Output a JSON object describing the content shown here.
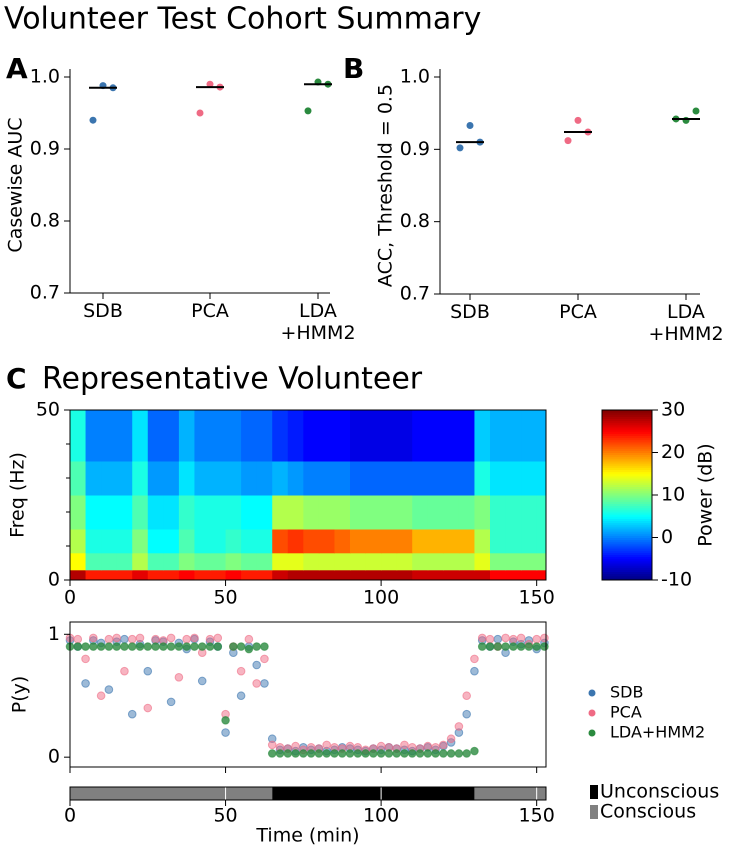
{
  "title": "Volunteer Test Cohort Summary",
  "chart_data": [
    {
      "type": "strip",
      "panel": "A",
      "ylabel": "Casewise AUC",
      "categories": [
        [
          "SDB"
        ],
        [
          "PCA"
        ],
        [
          "LDA",
          "+HMM2"
        ]
      ],
      "colors": [
        "#3b75af",
        "#ef6a84",
        "#2a8a3e"
      ],
      "values": [
        [
          0.94,
          0.988,
          0.985
        ],
        [
          0.95,
          0.99,
          0.986
        ],
        [
          0.953,
          0.993,
          0.99
        ]
      ],
      "medians": [
        0.985,
        0.986,
        0.99
      ],
      "ylim": [
        0.7,
        1.0
      ],
      "yticks": [
        0.7,
        0.8,
        0.9,
        {
          "value": 1.0,
          "label": "1.0"
        }
      ]
    },
    {
      "type": "strip",
      "panel": "B",
      "ylabel": "ACC, Threshold = 0.5",
      "categories": [
        [
          "SDB"
        ],
        [
          "PCA"
        ],
        [
          "LDA",
          "+HMM2"
        ]
      ],
      "colors": [
        "#3b75af",
        "#ef6a84",
        "#2a8a3e"
      ],
      "values": [
        [
          0.902,
          0.933,
          0.91
        ],
        [
          0.912,
          0.94,
          0.924
        ],
        [
          0.942,
          0.94,
          0.953
        ]
      ],
      "medians": [
        0.91,
        0.924,
        0.942
      ],
      "ylim": [
        0.7,
        1.0
      ],
      "yticks": [
        0.7,
        0.8,
        0.9,
        {
          "value": 1.0,
          "label": "1.0"
        }
      ]
    },
    {
      "type": "heatmap",
      "panel": "C",
      "title": "Representative Volunteer",
      "ylabel": "Freq (Hz)",
      "x_edges": [
        0,
        5,
        10,
        15,
        20,
        25,
        30,
        35,
        40,
        45,
        50,
        55,
        60,
        65,
        70,
        75,
        80,
        85,
        90,
        95,
        100,
        105,
        110,
        115,
        120,
        125,
        130,
        135,
        140,
        145,
        150,
        153
      ],
      "y_edges": [
        0,
        3,
        8,
        15,
        25,
        35,
        50
      ],
      "z": [
        [
          28,
          24,
          24,
          24,
          26,
          24,
          24,
          25,
          24,
          24,
          25,
          24,
          24,
          27,
          28,
          28,
          28,
          28,
          28,
          28,
          28,
          28,
          27,
          27,
          27,
          27,
          27,
          25,
          25,
          25,
          25
        ],
        [
          15,
          8,
          8,
          8,
          12,
          8,
          8,
          10,
          9,
          9,
          10,
          9,
          9,
          14,
          14,
          13,
          13,
          13,
          13,
          13,
          13,
          13,
          12,
          12,
          12,
          12,
          14,
          10,
          10,
          10,
          10
        ],
        [
          12,
          6,
          6,
          6,
          10,
          5,
          5,
          8,
          6,
          6,
          7,
          6,
          6,
          22,
          23,
          22,
          22,
          21,
          20,
          20,
          20,
          20,
          18,
          18,
          18,
          18,
          12,
          7,
          7,
          7,
          7
        ],
        [
          10,
          5,
          5,
          5,
          8,
          4,
          4,
          7,
          6,
          6,
          6,
          5,
          5,
          12,
          12,
          11,
          11,
          11,
          10,
          10,
          10,
          10,
          9,
          9,
          9,
          9,
          10,
          7,
          7,
          7,
          7
        ],
        [
          8,
          2,
          2,
          2,
          6,
          1,
          1,
          4,
          2,
          2,
          2,
          1,
          1,
          2,
          1,
          0,
          0,
          0,
          -1,
          -1,
          -1,
          -1,
          -1,
          -1,
          -1,
          -1,
          6,
          4,
          4,
          4,
          4
        ],
        [
          6,
          0,
          0,
          0,
          4,
          -1,
          -1,
          2,
          0,
          0,
          0,
          -1,
          -1,
          -3,
          -4,
          -5,
          -5,
          -5,
          -6,
          -6,
          -6,
          -6,
          -5,
          -5,
          -5,
          -5,
          3,
          2,
          2,
          2,
          2
        ]
      ],
      "colormap": "jet",
      "zlim": [
        -10,
        30
      ],
      "zticks": [
        -10,
        0,
        10,
        20,
        30
      ],
      "zlabel": "Power (dB)",
      "xlim": [
        0,
        153
      ],
      "ylim": [
        0,
        50
      ],
      "xticks": [
        0,
        50,
        100,
        150
      ],
      "yticks": [
        0,
        50
      ],
      "yticks_minor": [
        10,
        20,
        30,
        40
      ]
    },
    {
      "type": "scatter",
      "ylabel": "P(y)",
      "x": [
        0,
        2.5,
        5,
        7.5,
        10,
        12.5,
        15,
        17.5,
        20,
        22.5,
        25,
        27.5,
        30,
        32.5,
        35,
        37.5,
        40,
        42.5,
        45,
        47.5,
        50,
        52.5,
        55,
        57.5,
        60,
        62.5,
        65,
        67.5,
        70,
        72.5,
        75,
        77.5,
        80,
        82.5,
        85,
        87.5,
        90,
        92.5,
        95,
        97.5,
        100,
        102.5,
        105,
        107.5,
        110,
        112.5,
        115,
        117.5,
        120,
        122.5,
        125,
        127.5,
        130,
        132.5,
        135,
        137.5,
        140,
        142.5,
        145,
        147.5,
        150,
        152.5
      ],
      "series": [
        {
          "name": "SDB",
          "color": "#3b75af",
          "values": [
            0.95,
            0.9,
            0.6,
            0.95,
            0.93,
            0.55,
            0.94,
            0.96,
            0.35,
            0.92,
            0.7,
            0.95,
            0.94,
            0.45,
            0.93,
            0.88,
            0.96,
            0.62,
            0.94,
            0.9,
            0.2,
            0.85,
            0.5,
            0.9,
            0.75,
            0.6,
            0.15,
            0.06,
            0.07,
            0.05,
            0.08,
            0.06,
            0.07,
            0.05,
            0.06,
            0.08,
            0.07,
            0.06,
            0.05,
            0.07,
            0.06,
            0.08,
            0.07,
            0.06,
            0.05,
            0.07,
            0.08,
            0.06,
            0.09,
            0.12,
            0.2,
            0.35,
            0.7,
            0.95,
            0.9,
            0.96,
            0.85,
            0.94,
            0.92,
            0.95,
            0.88,
            0.93
          ]
        },
        {
          "name": "PCA",
          "color": "#ef6a84",
          "values": [
            0.97,
            0.96,
            0.8,
            0.97,
            0.5,
            0.96,
            0.97,
            0.7,
            0.96,
            0.97,
            0.4,
            0.96,
            0.95,
            0.97,
            0.65,
            0.96,
            0.97,
            0.85,
            0.96,
            0.97,
            0.35,
            0.9,
            0.7,
            0.96,
            0.6,
            0.8,
            0.1,
            0.08,
            0.07,
            0.09,
            0.06,
            0.08,
            0.07,
            0.1,
            0.08,
            0.07,
            0.09,
            0.08,
            0.06,
            0.07,
            0.09,
            0.08,
            0.07,
            0.1,
            0.08,
            0.07,
            0.09,
            0.08,
            0.1,
            0.15,
            0.25,
            0.5,
            0.8,
            0.97,
            0.96,
            0.9,
            0.97,
            0.96,
            0.97,
            0.92,
            0.96,
            0.97
          ]
        },
        {
          "name": "LDA+HMM2",
          "color": "#2a8a3e",
          "values": [
            0.9,
            0.9,
            0.9,
            0.9,
            0.9,
            0.9,
            0.9,
            0.9,
            0.9,
            0.9,
            0.9,
            0.9,
            0.9,
            0.9,
            0.9,
            0.9,
            0.9,
            0.9,
            0.9,
            0.9,
            0.3,
            0.9,
            0.9,
            0.88,
            0.9,
            0.9,
            0.03,
            0.03,
            0.03,
            0.03,
            0.03,
            0.03,
            0.03,
            0.03,
            0.03,
            0.03,
            0.03,
            0.03,
            0.03,
            0.03,
            0.03,
            0.03,
            0.03,
            0.03,
            0.03,
            0.03,
            0.03,
            0.03,
            0.03,
            0.03,
            0.03,
            0.03,
            0.05,
            0.9,
            0.9,
            0.9,
            0.9,
            0.9,
            0.9,
            0.9,
            0.9,
            0.9
          ]
        }
      ],
      "xlim": [
        0,
        153
      ],
      "ylim": [
        -0.08,
        1.1
      ],
      "xticks": [
        0,
        50,
        100,
        150
      ],
      "yticks": [
        0,
        1
      ]
    },
    {
      "type": "state",
      "xlabel": "Time (min)",
      "states": [
        {
          "name": "Unconscious",
          "color": "#000000"
        },
        {
          "name": "Conscious",
          "color": "#808080"
        }
      ],
      "start": [
        0,
        65,
        130
      ],
      "end": [
        65,
        130,
        153
      ],
      "state": [
        1,
        0,
        1
      ],
      "xlim": [
        0,
        153
      ],
      "xticks": [
        0,
        50,
        100,
        150
      ]
    }
  ]
}
